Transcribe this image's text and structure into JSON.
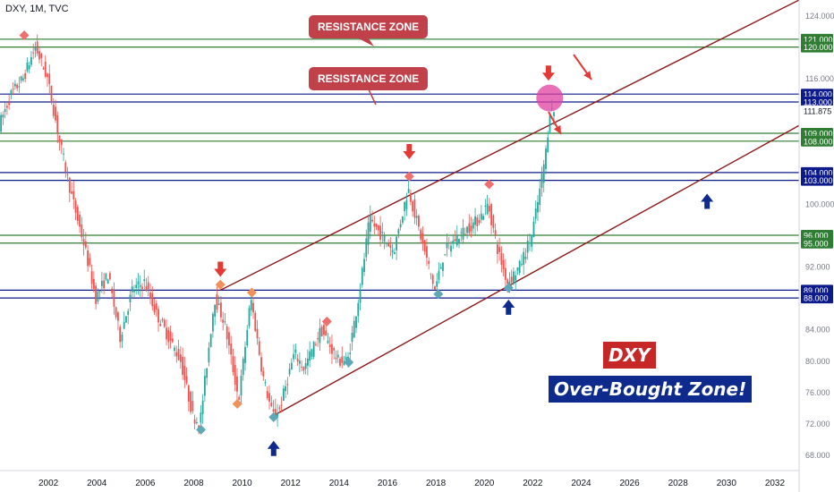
{
  "header": {
    "symbol": "DXY, 1M, TVC"
  },
  "annotations": {
    "resistance_top": "RESISTANCE ZONE",
    "resistance_mid": "RESISTANCE ZONE",
    "title": "DXY",
    "subtitle": "Over-Bought Zone!"
  },
  "colors": {
    "green_line": "#2e7d32",
    "blue_line": "#0d1a8c",
    "channel": "#8b1a1a",
    "up_candle": "#26a69a",
    "down_candle": "#ef5350",
    "red_arrow": "#e53935",
    "blue_arrow": "#0d2a8c",
    "label_bg": "#c0414a",
    "title_bg": "#c62828",
    "subtitle_bg": "#0d2a8c",
    "highlight": "#e040a0"
  },
  "chart_data": {
    "type": "candlestick",
    "x_ticks": [
      "2002",
      "2004",
      "2006",
      "2008",
      "2010",
      "2012",
      "2014",
      "2016",
      "2018",
      "2020",
      "2022",
      "2024",
      "2026",
      "2028",
      "2030",
      "2032"
    ],
    "y_ticks": [
      "124.000",
      "116.000",
      "100.000",
      "92.000",
      "84.000",
      "80.000",
      "76.000",
      "72.000",
      "68.000"
    ],
    "ylim": [
      66,
      126
    ],
    "xlim": [
      2000.0,
      2033.0
    ],
    "last_price": "111.875",
    "levels": [
      {
        "value": 121,
        "label": "121.000",
        "color": "green"
      },
      {
        "value": 120,
        "label": "120.000",
        "color": "green"
      },
      {
        "value": 114,
        "label": "114.000",
        "color": "blue"
      },
      {
        "value": 113,
        "label": "113.000",
        "color": "blue"
      },
      {
        "value": 109,
        "label": "109.000",
        "color": "green"
      },
      {
        "value": 108,
        "label": "108.000",
        "color": "green"
      },
      {
        "value": 104,
        "label": "104.000",
        "color": "blue"
      },
      {
        "value": 103,
        "label": "103.000",
        "color": "blue"
      },
      {
        "value": 96,
        "label": "96.000",
        "color": "green"
      },
      {
        "value": 95,
        "label": "95.000",
        "color": "green"
      },
      {
        "value": 89,
        "label": "89.000",
        "color": "blue"
      },
      {
        "value": 88,
        "label": "88.000",
        "color": "blue"
      }
    ],
    "price_path": [
      [
        2000.0,
        110
      ],
      [
        2000.5,
        114
      ],
      [
        2001.0,
        116
      ],
      [
        2001.5,
        120
      ],
      [
        2002.0,
        116
      ],
      [
        2002.5,
        108
      ],
      [
        2003.0,
        101
      ],
      [
        2003.5,
        95
      ],
      [
        2004.0,
        88
      ],
      [
        2004.5,
        91
      ],
      [
        2005.0,
        83
      ],
      [
        2005.5,
        89
      ],
      [
        2006.0,
        90
      ],
      [
        2006.5,
        86
      ],
      [
        2007.0,
        83
      ],
      [
        2007.5,
        80
      ],
      [
        2008.0,
        73
      ],
      [
        2008.3,
        72
      ],
      [
        2008.9,
        88
      ],
      [
        2009.3,
        85
      ],
      [
        2009.9,
        75
      ],
      [
        2010.4,
        88
      ],
      [
        2010.9,
        78
      ],
      [
        2011.3,
        73
      ],
      [
        2011.6,
        74
      ],
      [
        2012.2,
        81
      ],
      [
        2012.6,
        79
      ],
      [
        2013.3,
        84
      ],
      [
        2014.0,
        80
      ],
      [
        2014.4,
        80
      ],
      [
        2014.9,
        89
      ],
      [
        2015.3,
        98
      ],
      [
        2015.8,
        96
      ],
      [
        2016.3,
        94
      ],
      [
        2016.9,
        102
      ],
      [
        2017.4,
        96
      ],
      [
        2018.0,
        89
      ],
      [
        2018.4,
        94
      ],
      [
        2019.0,
        96
      ],
      [
        2019.8,
        98
      ],
      [
        2020.2,
        100
      ],
      [
        2020.6,
        94
      ],
      [
        2021.0,
        90
      ],
      [
        2021.5,
        92
      ],
      [
        2022.0,
        96
      ],
      [
        2022.3,
        101
      ],
      [
        2022.6,
        107
      ],
      [
        2022.75,
        112
      ],
      [
        2022.85,
        111.875
      ]
    ],
    "channel_lines": [
      {
        "from": [
          2009.1,
          89
        ],
        "to": [
          2033.0,
          126
        ]
      },
      {
        "from": [
          2011.3,
          73
        ],
        "to": [
          2033.0,
          110
        ]
      }
    ],
    "markers": [
      {
        "type": "diamond",
        "x": 2001.0,
        "y": 121.5,
        "color": "#f07070"
      },
      {
        "type": "diamond",
        "x": 2008.3,
        "y": 71.2,
        "color": "#5fa8b8"
      },
      {
        "type": "diamond",
        "x": 2009.1,
        "y": 89.7,
        "color": "#f0905a"
      },
      {
        "type": "diamond",
        "x": 2010.4,
        "y": 88.7,
        "color": "#f0905a"
      },
      {
        "type": "diamond",
        "x": 2009.8,
        "y": 74.5,
        "color": "#f0905a"
      },
      {
        "type": "diamond",
        "x": 2011.3,
        "y": 72.8,
        "color": "#5fa8b8"
      },
      {
        "type": "diamond",
        "x": 2013.5,
        "y": 85.0,
        "color": "#f07070"
      },
      {
        "type": "diamond",
        "x": 2014.4,
        "y": 79.8,
        "color": "#5fa8b8"
      },
      {
        "type": "diamond",
        "x": 2016.9,
        "y": 103.5,
        "color": "#f07070"
      },
      {
        "type": "diamond",
        "x": 2018.1,
        "y": 88.5,
        "color": "#5fa8b8"
      },
      {
        "type": "diamond",
        "x": 2020.2,
        "y": 102.5,
        "color": "#f07070"
      },
      {
        "type": "diamond",
        "x": 2021.0,
        "y": 89.3,
        "color": "#5fa8b8"
      }
    ],
    "arrows": [
      {
        "dir": "down",
        "x": 2009.1,
        "y": 91.5,
        "color": "red"
      },
      {
        "dir": "down",
        "x": 2016.9,
        "y": 106.5,
        "color": "red"
      },
      {
        "dir": "down",
        "x": 2022.65,
        "y": 116.5,
        "color": "red"
      },
      {
        "dir": "up",
        "x": 2011.3,
        "y": 69.0,
        "color": "blue"
      },
      {
        "dir": "up",
        "x": 2021.0,
        "y": 87.0,
        "color": "blue"
      },
      {
        "dir": "up",
        "x": 2029.2,
        "y": 100.5,
        "color": "blue"
      }
    ],
    "highlight": {
      "x": 2022.7,
      "y": 113.5
    }
  }
}
